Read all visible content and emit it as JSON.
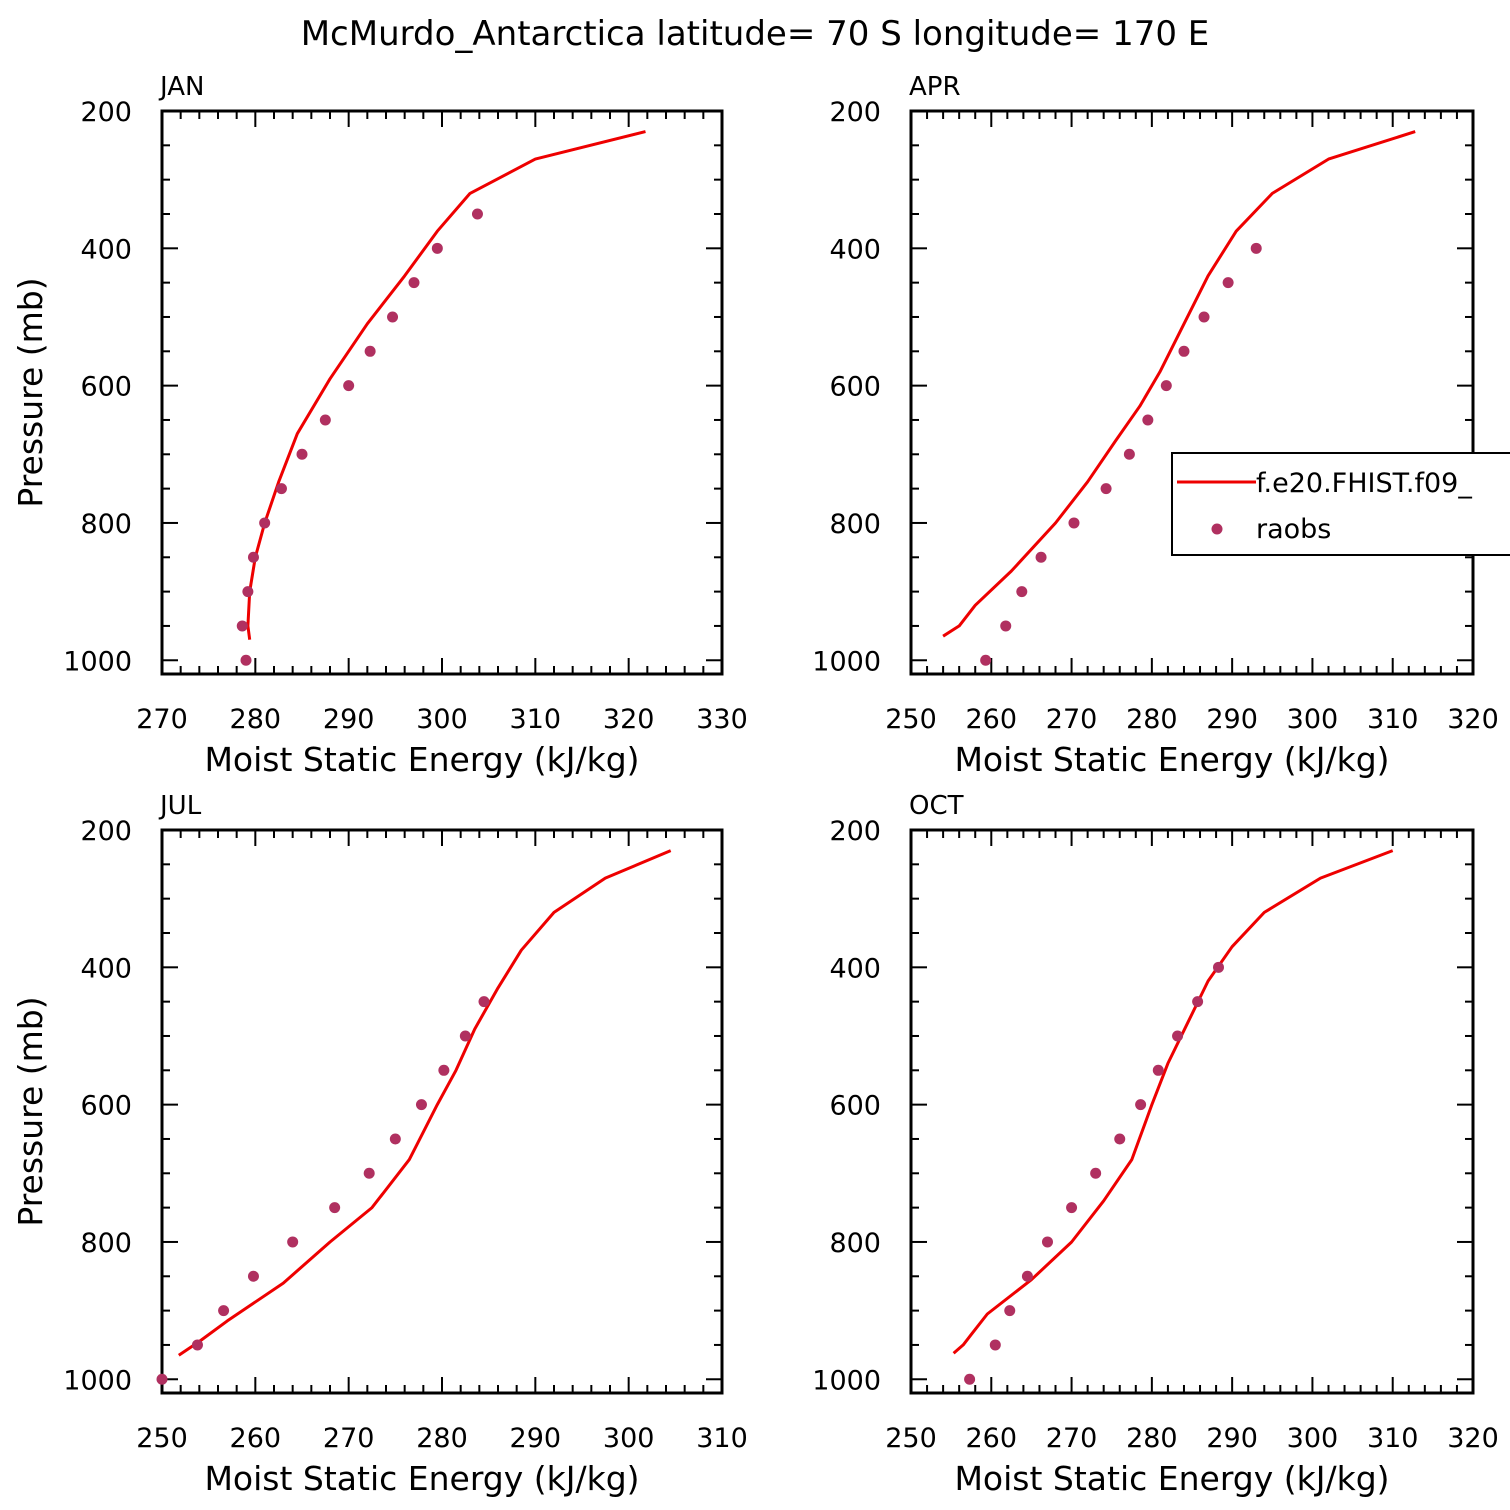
{
  "figure": {
    "title": "McMurdo_Antarctica  latitude= 70 S longitude= 170 E"
  },
  "colors": {
    "model": "#ee0000",
    "obs": "#b03060",
    "axis": "#000000"
  },
  "legend": {
    "model_label": "f.e20.FHIST.f09_",
    "obs_label": "raobs",
    "placement": "right-middle of APR panel"
  },
  "chart_data": [
    {
      "type": "line",
      "panel_label": "JAN",
      "xlabel": "Moist Static Energy (kJ/kg)",
      "ylabel": "Pressure (mb)",
      "xlim": [
        270,
        330
      ],
      "ylim": [
        1020,
        200
      ],
      "xticks": [
        270,
        280,
        290,
        300,
        310,
        320,
        330
      ],
      "yticks": [
        200,
        400,
        600,
        800,
        1000
      ],
      "model": {
        "x": [
          321.8,
          310.0,
          303.0,
          299.5,
          296.0,
          292.0,
          288.0,
          284.5,
          282.5,
          281.0,
          280.0,
          279.4,
          279.2,
          279.4
        ],
        "y": [
          230,
          270,
          320,
          375,
          440,
          510,
          590,
          670,
          740,
          800,
          850,
          900,
          950,
          970
        ]
      },
      "obs": {
        "x": [
          303.8,
          299.5,
          297.0,
          294.7,
          292.3,
          290.0,
          287.5,
          285.0,
          282.8,
          281.0,
          279.8,
          279.2,
          278.6,
          279.0
        ],
        "y": [
          350,
          400,
          450,
          500,
          550,
          600,
          650,
          700,
          750,
          800,
          850,
          900,
          950,
          1000
        ]
      }
    },
    {
      "type": "line",
      "panel_label": "APR",
      "xlabel": "Moist Static Energy (kJ/kg)",
      "ylabel": "",
      "xlim": [
        250,
        320
      ],
      "ylim": [
        1020,
        200
      ],
      "xticks": [
        250,
        260,
        270,
        280,
        290,
        300,
        310,
        320
      ],
      "yticks": [
        200,
        400,
        600,
        800,
        1000
      ],
      "model": {
        "x": [
          312.8,
          302.0,
          295.0,
          290.5,
          287.0,
          284.0,
          281.0,
          278.5,
          275.5,
          272.0,
          268.0,
          262.5,
          258.0,
          256.0,
          254.0
        ],
        "y": [
          230,
          270,
          320,
          375,
          440,
          510,
          580,
          630,
          680,
          740,
          800,
          870,
          920,
          950,
          965
        ]
      },
      "obs": {
        "x": [
          293.0,
          289.5,
          286.5,
          284.0,
          281.8,
          279.5,
          277.2,
          274.3,
          270.3,
          266.2,
          263.8,
          261.8,
          259.3
        ],
        "y": [
          400,
          450,
          500,
          550,
          600,
          650,
          700,
          750,
          800,
          850,
          900,
          950,
          1000
        ]
      }
    },
    {
      "type": "line",
      "panel_label": "JUL",
      "xlabel": "Moist Static Energy (kJ/kg)",
      "ylabel": "Pressure (mb)",
      "xlim": [
        250,
        310
      ],
      "ylim": [
        1020,
        200
      ],
      "xticks": [
        250,
        260,
        270,
        280,
        290,
        300,
        310
      ],
      "yticks": [
        200,
        400,
        600,
        800,
        1000
      ],
      "model": {
        "x": [
          304.5,
          297.5,
          292.0,
          288.5,
          286.0,
          283.5,
          281.5,
          279.5,
          276.5,
          272.5,
          268.0,
          263.0,
          257.0,
          254.0,
          251.8
        ],
        "y": [
          230,
          270,
          320,
          375,
          430,
          490,
          550,
          600,
          680,
          750,
          800,
          860,
          915,
          945,
          965
        ]
      },
      "obs": {
        "x": [
          284.5,
          282.5,
          280.2,
          277.8,
          275.0,
          272.2,
          268.5,
          264.0,
          259.8,
          256.6,
          253.8,
          250.0
        ],
        "y": [
          450,
          500,
          550,
          600,
          650,
          700,
          750,
          800,
          850,
          900,
          950,
          1000
        ]
      }
    },
    {
      "type": "line",
      "panel_label": "OCT",
      "xlabel": "Moist Static Energy (kJ/kg)",
      "ylabel": "",
      "xlim": [
        250,
        320
      ],
      "ylim": [
        1020,
        200
      ],
      "xticks": [
        250,
        260,
        270,
        280,
        290,
        300,
        310,
        320
      ],
      "yticks": [
        200,
        400,
        600,
        800,
        1000
      ],
      "model": {
        "x": [
          310.0,
          301.0,
          294.0,
          290.0,
          287.0,
          284.5,
          282.0,
          280.0,
          277.5,
          274.0,
          270.0,
          265.0,
          259.5,
          257.5,
          256.5,
          255.3
        ],
        "y": [
          230,
          270,
          320,
          370,
          420,
          480,
          540,
          600,
          680,
          740,
          800,
          855,
          905,
          935,
          950,
          962
        ]
      },
      "obs": {
        "x": [
          288.3,
          285.7,
          283.2,
          280.8,
          278.6,
          276.0,
          273.0,
          270.0,
          267.0,
          264.5,
          262.3,
          260.5,
          257.3
        ],
        "y": [
          400,
          450,
          500,
          550,
          600,
          650,
          700,
          750,
          800,
          850,
          900,
          950,
          1000
        ]
      }
    }
  ]
}
